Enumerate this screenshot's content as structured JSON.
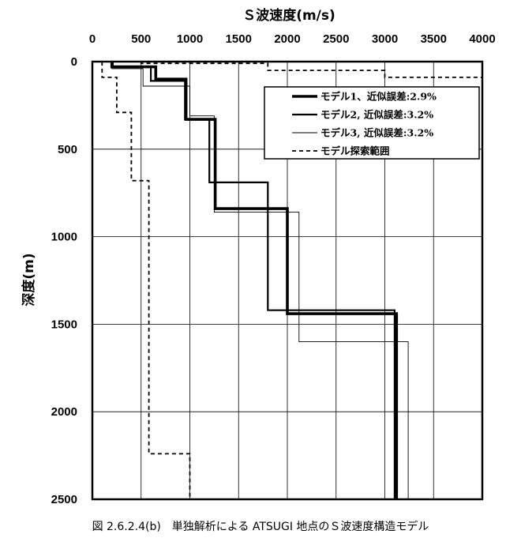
{
  "caption": "図 2.6.2.4(b)　単独解析による ATSUGI 地点のＳ波速度構造モデル",
  "chart_data": {
    "type": "line",
    "title": "",
    "xlabel": "Ｓ波速度(m/s)",
    "ylabel": "深度(m)",
    "xlim": [
      0,
      4000
    ],
    "ylim": [
      0,
      2500
    ],
    "y_inverted": true,
    "x_axis_position": "top",
    "x_ticks": [
      0,
      500,
      1000,
      1500,
      2000,
      2500,
      3000,
      3500,
      4000
    ],
    "y_ticks": [
      0,
      500,
      1000,
      1500,
      2000,
      2500
    ],
    "x_tick_labels": [
      "0",
      "500",
      "1000",
      "1500",
      "2000",
      "2500",
      "3000",
      "3500",
      "4000"
    ],
    "y_tick_labels": [
      "0",
      "500",
      "1000",
      "1500",
      "2000",
      "2500"
    ],
    "grid": true,
    "legend_position": "top-right",
    "series": [
      {
        "name": "モデル1、近似誤差:2.9%",
        "style": "thick",
        "points": [
          [
            200,
            0
          ],
          [
            200,
            30
          ],
          [
            650,
            30
          ],
          [
            650,
            100
          ],
          [
            960,
            100
          ],
          [
            960,
            330
          ],
          [
            1260,
            330
          ],
          [
            1260,
            840
          ],
          [
            2000,
            840
          ],
          [
            2000,
            1440
          ],
          [
            3120,
            1440
          ],
          [
            3120,
            2500
          ]
        ]
      },
      {
        "name": "モデル2, 近似誤差:3.2%",
        "style": "medium",
        "points": [
          [
            210,
            0
          ],
          [
            210,
            30
          ],
          [
            600,
            30
          ],
          [
            600,
            110
          ],
          [
            950,
            110
          ],
          [
            950,
            330
          ],
          [
            1200,
            330
          ],
          [
            1200,
            690
          ],
          [
            1800,
            690
          ],
          [
            1800,
            1420
          ],
          [
            3100,
            1420
          ],
          [
            3100,
            2500
          ]
        ]
      },
      {
        "name": "モデル3, 近似誤差:3.2%",
        "style": "thin",
        "points": [
          [
            200,
            0
          ],
          [
            200,
            40
          ],
          [
            520,
            40
          ],
          [
            520,
            140
          ],
          [
            1000,
            140
          ],
          [
            1000,
            310
          ],
          [
            1250,
            310
          ],
          [
            1250,
            860
          ],
          [
            2120,
            860
          ],
          [
            2120,
            1600
          ],
          [
            3240,
            1600
          ],
          [
            3240,
            2500
          ]
        ]
      },
      {
        "name": "モデル探索範囲",
        "style": "dashed",
        "points": [
          [
            100,
            0
          ],
          [
            100,
            90
          ],
          [
            250,
            90
          ],
          [
            250,
            290
          ],
          [
            400,
            290
          ],
          [
            400,
            680
          ],
          [
            580,
            680
          ],
          [
            580,
            2240
          ],
          [
            1000,
            2240
          ],
          [
            1000,
            2500
          ]
        ]
      },
      {
        "name": "",
        "style": "dashed",
        "points": [
          [
            500,
            0
          ],
          [
            500,
            10
          ],
          [
            1800,
            10
          ],
          [
            1800,
            50
          ],
          [
            3000,
            50
          ],
          [
            3000,
            90
          ],
          [
            4000,
            90
          ]
        ]
      }
    ]
  }
}
